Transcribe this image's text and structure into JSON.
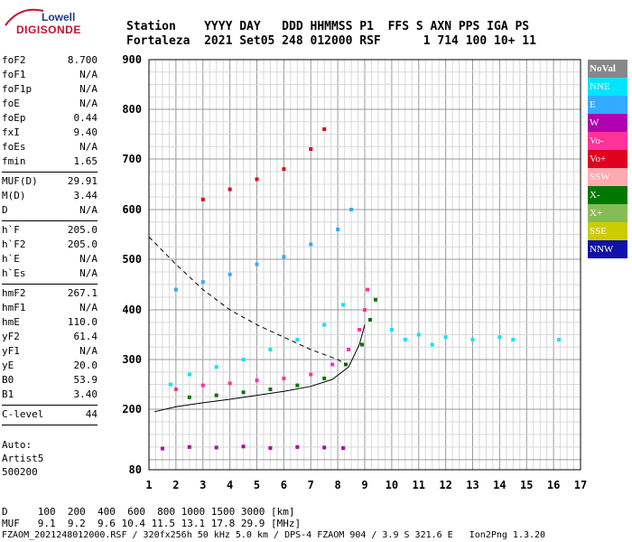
{
  "logo": {
    "line1": "Lowell",
    "line2": "DIGISONDE"
  },
  "header": {
    "line1": "Station    YYYY DAY   DDD HHMMSS P1  FFS S AXN PPS IGA PS",
    "line2": "Fortaleza  2021 Set05 248 012000 RSF      1 714 100 10+ 11"
  },
  "params": [
    {
      "k": "foF2",
      "v": "8.700"
    },
    {
      "k": "foF1",
      "v": "N/A"
    },
    {
      "k": "foF1p",
      "v": "N/A"
    },
    {
      "k": "foE",
      "v": "N/A"
    },
    {
      "k": "foEp",
      "v": "0.44"
    },
    {
      "k": "fxI",
      "v": "9.40"
    },
    {
      "k": "foEs",
      "v": "N/A"
    },
    {
      "k": "fmin",
      "v": "1.65"
    },
    {
      "sep": true
    },
    {
      "k": "MUF(D)",
      "v": "29.91"
    },
    {
      "k": "M(D)",
      "v": "3.44"
    },
    {
      "k": "D",
      "v": "N/A"
    },
    {
      "sep": true
    },
    {
      "k": "h`F",
      "v": "205.0"
    },
    {
      "k": "h`F2",
      "v": "205.0"
    },
    {
      "k": "h`E",
      "v": "N/A"
    },
    {
      "k": "h`Es",
      "v": "N/A"
    },
    {
      "sep": true
    },
    {
      "k": "hmF2",
      "v": "267.1"
    },
    {
      "k": "hmF1",
      "v": "N/A"
    },
    {
      "k": "hmE",
      "v": "110.0"
    },
    {
      "k": "yF2",
      "v": "61.4"
    },
    {
      "k": "yF1",
      "v": "N/A"
    },
    {
      "k": "yE",
      "v": "20.0"
    },
    {
      "k": "B0",
      "v": "53.9"
    },
    {
      "k": "B1",
      "v": "3.40"
    },
    {
      "sep": true
    },
    {
      "k": "C-level",
      "v": "44"
    },
    {
      "sep": true
    }
  ],
  "auto": {
    "line1": "Auto:",
    "line2": "Artist5",
    "line3": "500200"
  },
  "legend": [
    {
      "label": "NoVal",
      "color": "#888888"
    },
    {
      "label": "NNE",
      "color": "#00e5ff"
    },
    {
      "label": "E",
      "color": "#33aaff"
    },
    {
      "label": "W",
      "color": "#b000b0"
    },
    {
      "label": "Vo-",
      "color": "#ff3399"
    },
    {
      "label": "Vo+",
      "color": "#e00020"
    },
    {
      "label": "SSW",
      "color": "#ffaab0"
    },
    {
      "label": "X-",
      "color": "#007700"
    },
    {
      "label": "X+",
      "color": "#88bb55"
    },
    {
      "label": "SSE",
      "color": "#cccc00"
    },
    {
      "label": "NNW",
      "color": "#1010aa"
    }
  ],
  "footer": {
    "line1": "D     100  200  400  600  800 1000 1500 3000 [km]",
    "line2": "MUF   9.1  9.2  9.6 10.4 11.5 13.1 17.8 29.9 [MHz]",
    "line3": "FZAOM_2021248012000.RSF / 320fx256h 50 kHz 5.0 km / DPS-4 FZAOM 904 / 3.9 S 321.6 E   Ion2Png 1.3.20"
  },
  "chart_data": {
    "type": "scatter",
    "xlim": [
      1,
      17
    ],
    "ylim": [
      80,
      900
    ],
    "x_ticks": [
      "1",
      "2",
      "3",
      "4",
      "5",
      "6",
      "7",
      "8",
      "9",
      "10",
      "11",
      "12",
      "13",
      "14",
      "15",
      "16",
      "17"
    ],
    "y_ticks": [
      "80",
      "200",
      "300",
      "400",
      "500",
      "600",
      "700",
      "800",
      "900"
    ],
    "y_tick_values": [
      80,
      200,
      300,
      400,
      500,
      600,
      700,
      800,
      900
    ],
    "grid": true,
    "series": [
      {
        "color_key": "vo_minus",
        "points": [
          [
            2.0,
            240
          ],
          [
            3.0,
            248
          ],
          [
            4.0,
            252
          ],
          [
            5.0,
            258
          ],
          [
            6.0,
            262
          ],
          [
            7.0,
            270
          ],
          [
            7.8,
            290
          ],
          [
            8.4,
            320
          ],
          [
            8.8,
            360
          ],
          [
            9.0,
            400
          ],
          [
            9.1,
            440
          ]
        ]
      },
      {
        "color_key": "x_minus",
        "points": [
          [
            2.5,
            224
          ],
          [
            3.5,
            228
          ],
          [
            4.5,
            234
          ],
          [
            5.5,
            240
          ],
          [
            6.5,
            248
          ],
          [
            7.5,
            262
          ],
          [
            8.3,
            290
          ],
          [
            8.9,
            330
          ],
          [
            9.2,
            380
          ],
          [
            9.4,
            420
          ]
        ]
      },
      {
        "color_key": "nne",
        "points": [
          [
            1.8,
            250
          ],
          [
            2.5,
            270
          ],
          [
            3.5,
            285
          ],
          [
            4.5,
            300
          ],
          [
            5.5,
            320
          ],
          [
            6.5,
            340
          ],
          [
            7.5,
            370
          ],
          [
            8.2,
            410
          ]
        ]
      },
      {
        "color_key": "w",
        "points": [
          [
            1.5,
            122
          ],
          [
            2.5,
            125
          ],
          [
            3.5,
            124
          ],
          [
            4.5,
            126
          ],
          [
            5.5,
            123
          ],
          [
            6.5,
            125
          ],
          [
            7.5,
            124
          ],
          [
            8.2,
            123
          ]
        ]
      },
      {
        "color_key": "e",
        "points": [
          [
            2.0,
            440
          ],
          [
            3.0,
            455
          ],
          [
            4.0,
            470
          ],
          [
            5.0,
            490
          ],
          [
            6.0,
            505
          ],
          [
            7.0,
            530
          ],
          [
            8.0,
            560
          ],
          [
            8.5,
            600
          ]
        ]
      },
      {
        "color_key": "vo_plus",
        "points": [
          [
            3.0,
            620
          ],
          [
            4.0,
            640
          ],
          [
            5.0,
            660
          ],
          [
            6.0,
            680
          ],
          [
            7.0,
            720
          ],
          [
            7.5,
            760
          ]
        ]
      },
      {
        "color_key": "nne",
        "points": [
          [
            10.0,
            360
          ],
          [
            10.5,
            340
          ],
          [
            11.0,
            350
          ],
          [
            11.5,
            330
          ],
          [
            12.0,
            345
          ],
          [
            13.0,
            340
          ],
          [
            14.0,
            345
          ],
          [
            14.5,
            340
          ],
          [
            16.2,
            340
          ]
        ]
      }
    ],
    "trace_lines": [
      {
        "style": "solid",
        "points": [
          [
            1.2,
            195
          ],
          [
            2,
            205
          ],
          [
            3,
            213
          ],
          [
            4,
            220
          ],
          [
            5,
            228
          ],
          [
            6,
            236
          ],
          [
            7,
            246
          ],
          [
            7.8,
            260
          ],
          [
            8.4,
            285
          ],
          [
            8.8,
            330
          ],
          [
            9.0,
            370
          ]
        ]
      },
      {
        "style": "dashed",
        "points": [
          [
            1.0,
            545
          ],
          [
            2.0,
            490
          ],
          [
            3.0,
            440
          ],
          [
            4.0,
            400
          ],
          [
            5.0,
            370
          ],
          [
            6.0,
            345
          ],
          [
            7.0,
            320
          ],
          [
            8.0,
            300
          ],
          [
            8.3,
            290
          ]
        ]
      }
    ]
  }
}
